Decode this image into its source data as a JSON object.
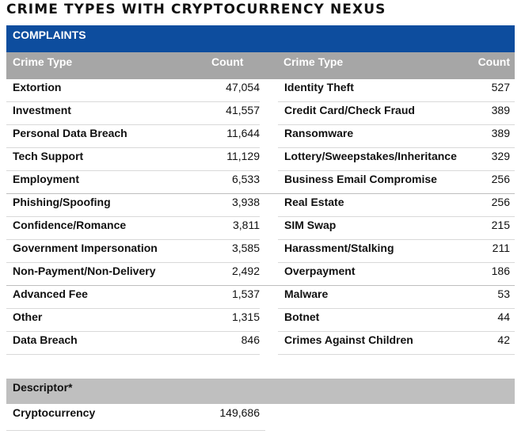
{
  "title": "CRIME TYPES WITH CRYPTOCURRENCY NEXUS",
  "section_label": "COMPLAINTS",
  "headers": {
    "left_type": "Crime Type",
    "left_count": "Count",
    "right_type": "Crime Type",
    "right_count": "Count"
  },
  "rows": [
    {
      "left_type": "Extortion",
      "left_count": "47,054",
      "right_type": "Identity Theft",
      "right_count": "527"
    },
    {
      "left_type": "Investment",
      "left_count": "41,557",
      "right_type": "Credit Card/Check Fraud",
      "right_count": "389"
    },
    {
      "left_type": "Personal Data Breach",
      "left_count": "11,644",
      "right_type": "Ransomware",
      "right_count": "389"
    },
    {
      "left_type": "Tech Support",
      "left_count": "11,129",
      "right_type": "Lottery/Sweepstakes/Inheritance",
      "right_count": "329"
    },
    {
      "left_type": "Employment",
      "left_count": "6,533",
      "right_type": "Business Email Compromise",
      "right_count": "256"
    },
    {
      "left_type": "Phishing/Spoofing",
      "left_count": "3,938",
      "right_type": "Real Estate",
      "right_count": "256"
    },
    {
      "left_type": "Confidence/Romance",
      "left_count": "3,811",
      "right_type": "SIM Swap",
      "right_count": "215"
    },
    {
      "left_type": "Government Impersonation",
      "left_count": "3,585",
      "right_type": "Harassment/Stalking",
      "right_count": "211"
    },
    {
      "left_type": "Non-Payment/Non-Delivery",
      "left_count": "2,492",
      "right_type": "Overpayment",
      "right_count": "186"
    },
    {
      "left_type": "Advanced Fee",
      "left_count": "1,537",
      "right_type": "Malware",
      "right_count": "53"
    },
    {
      "left_type": "Other",
      "left_count": "1,315",
      "right_type": "Botnet",
      "right_count": "44"
    },
    {
      "left_type": "Data Breach",
      "left_count": "846",
      "right_type": "Crimes Against Children",
      "right_count": "42"
    }
  ],
  "descriptor": {
    "header": "Descriptor*",
    "label": "Cryptocurrency",
    "count": "149,686"
  },
  "colors": {
    "section_bar": "#0d4d9e",
    "header_row": "#a6a6a6",
    "descriptor_header": "#bfbfbf"
  }
}
